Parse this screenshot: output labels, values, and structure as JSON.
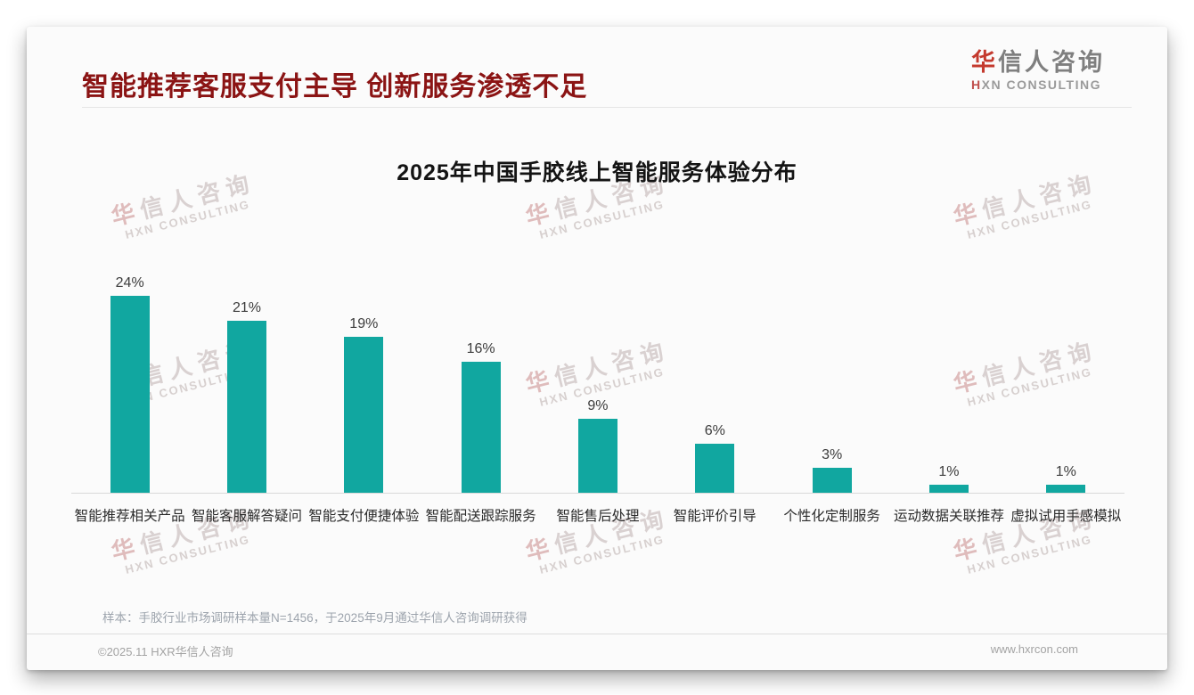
{
  "header": {
    "title": "智能推荐客服支付主导 创新服务渗透不足",
    "logo": {
      "zh_first": "华",
      "zh_rest": "信人咨询",
      "en_first": "H",
      "en_rest": "XN CONSULTING"
    }
  },
  "chart_data": {
    "type": "bar",
    "title": "2025年中国手胶线上智能服务体验分布",
    "categories": [
      "智能推荐相关产品",
      "智能客服解答疑问",
      "智能支付便捷体验",
      "智能配送跟踪服务",
      "智能售后处理",
      "智能评价引导",
      "个性化定制服务",
      "运动数据关联推荐",
      "虚拟试用手感模拟"
    ],
    "values": [
      24,
      21,
      19,
      16,
      9,
      6,
      3,
      1,
      1
    ],
    "value_suffix": "%",
    "bar_color": "#11a7a0",
    "ylim": [
      0,
      26
    ],
    "grid": false,
    "legend": "none",
    "value_labels": "above_bars",
    "xlabel": "",
    "ylabel": ""
  },
  "watermark": {
    "zh_first": "华",
    "zh_rest": "信人咨询",
    "en": "HXN CONSULTING"
  },
  "footnote": "样本：手胶行业市场调研样本量N=1456，于2025年9月通过华信人咨询调研获得",
  "footer": {
    "copyright": "©2025.11 HXR华信人咨询",
    "website": "www.hxrcon.com"
  },
  "colors": {
    "title_red": "#8b1414",
    "bar_teal": "#11a7a0",
    "logo_red": "#c43a2e",
    "logo_gray": "#7f7f7f"
  }
}
